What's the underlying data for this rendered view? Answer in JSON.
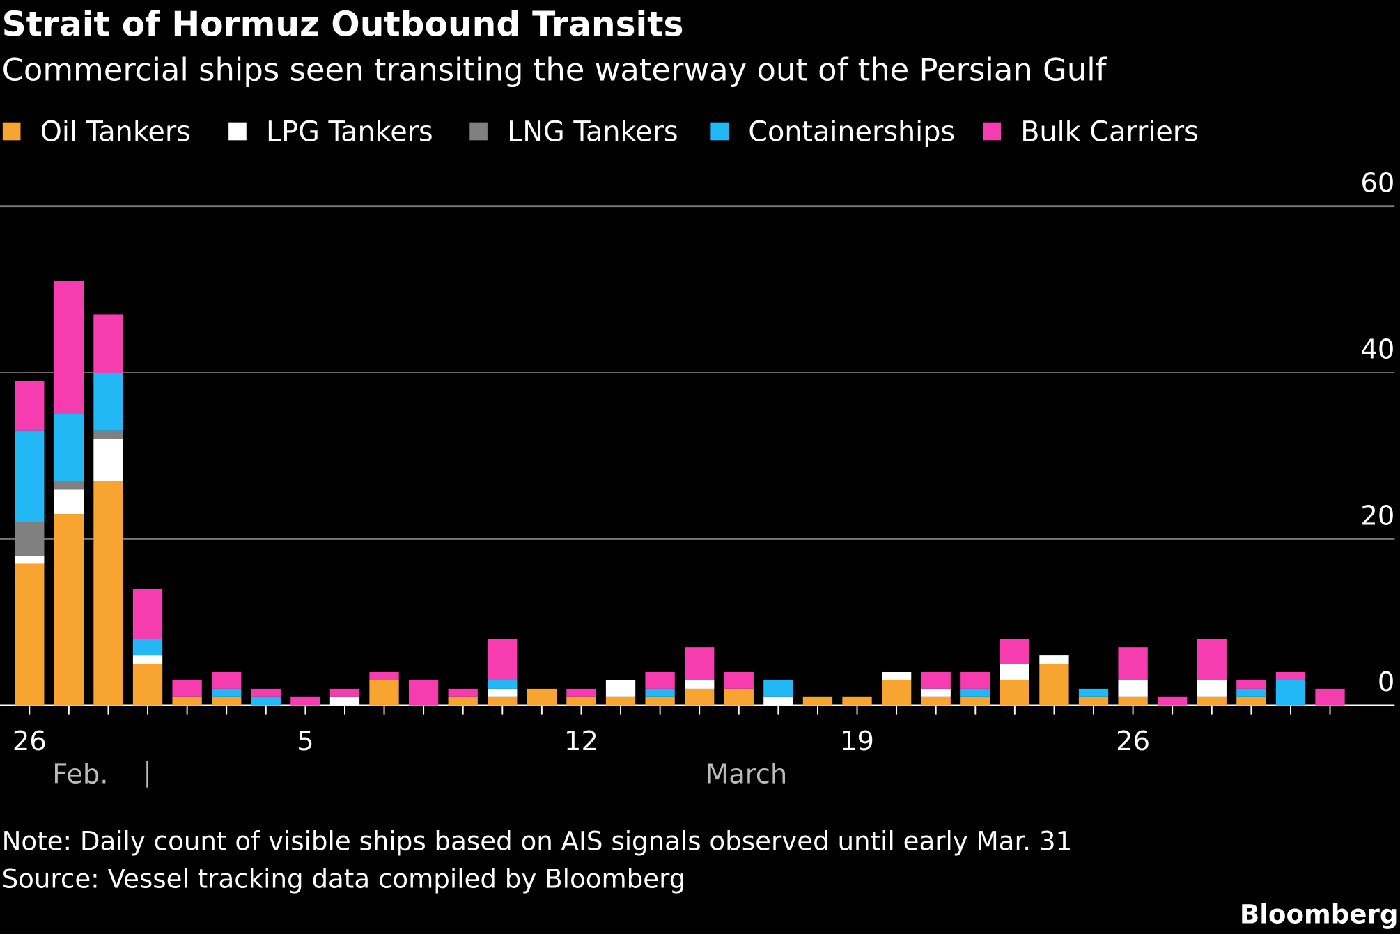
{
  "chart_data": {
    "type": "bar",
    "stacked": true,
    "title": "Strait of Hormuz Outbound Transits",
    "subtitle": "Commercial ships seen transiting the waterway out of the Persian Gulf",
    "categories": [
      "26",
      null,
      null,
      null,
      null,
      null,
      null,
      "5",
      null,
      null,
      null,
      null,
      null,
      null,
      "12",
      null,
      null,
      null,
      null,
      null,
      null,
      "19",
      null,
      null,
      null,
      null,
      null,
      null,
      "26",
      null,
      null,
      null,
      null,
      null
    ],
    "x_group_labels": [
      "Feb.",
      "March"
    ],
    "series": [
      {
        "name": "Oil Tankers",
        "color": "#f7a430",
        "values": [
          17,
          23,
          27,
          5,
          1,
          1,
          0,
          0,
          0,
          3,
          0,
          1,
          1,
          2,
          1,
          1,
          1,
          2,
          2,
          0,
          1,
          1,
          3,
          1,
          1,
          3,
          5,
          1,
          1,
          0,
          1,
          1,
          0,
          0
        ]
      },
      {
        "name": "LPG Tankers",
        "color": "#ffffff",
        "values": [
          1,
          3,
          5,
          1,
          0,
          0,
          0,
          0,
          1,
          0,
          0,
          0,
          1,
          0,
          0,
          2,
          0,
          1,
          0,
          1,
          0,
          0,
          1,
          1,
          0,
          2,
          1,
          0,
          2,
          0,
          2,
          0,
          0,
          0
        ]
      },
      {
        "name": "LNG Tankers",
        "color": "#808080",
        "values": [
          4,
          1,
          1,
          0,
          0,
          0,
          0,
          0,
          0,
          0,
          0,
          0,
          0,
          0,
          0,
          0,
          0,
          0,
          0,
          0,
          0,
          0,
          0,
          0,
          0,
          0,
          0,
          0,
          0,
          0,
          0,
          0,
          0,
          0
        ]
      },
      {
        "name": "Containerships",
        "color": "#22b8f5",
        "values": [
          11,
          8,
          7,
          2,
          0,
          1,
          1,
          0,
          0,
          0,
          0,
          0,
          1,
          0,
          0,
          0,
          1,
          0,
          0,
          2,
          0,
          0,
          0,
          0,
          1,
          0,
          0,
          1,
          0,
          0,
          0,
          1,
          3,
          0
        ]
      },
      {
        "name": "Bulk Carriers",
        "color": "#f53db0",
        "values": [
          6,
          16,
          7,
          6,
          2,
          2,
          1,
          1,
          1,
          1,
          3,
          1,
          5,
          0,
          1,
          0,
          2,
          4,
          2,
          0,
          0,
          0,
          0,
          2,
          2,
          3,
          0,
          0,
          4,
          1,
          5,
          1,
          1,
          2
        ]
      }
    ],
    "ylim": [
      0,
      60
    ],
    "yticks": [
      0,
      20,
      40,
      60
    ],
    "grid": true,
    "note": "Note: Daily count of visible ships based on AIS signals observed until early Mar. 31",
    "source": "Source: Vessel tracking data compiled by Bloomberg",
    "brand": "Bloomberg"
  }
}
